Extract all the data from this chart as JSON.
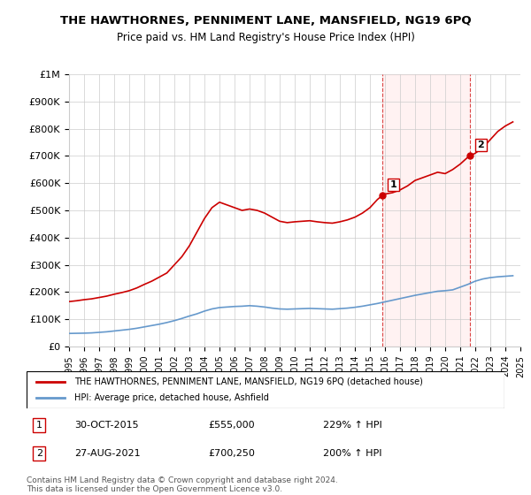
{
  "title": "THE HAWTHORNES, PENNIMENT LANE, MANSFIELD, NG19 6PQ",
  "subtitle": "Price paid vs. HM Land Registry's House Price Index (HPI)",
  "legend_label_red": "THE HAWTHORNES, PENNIMENT LANE, MANSFIELD, NG19 6PQ (detached house)",
  "legend_label_blue": "HPI: Average price, detached house, Ashfield",
  "footer1": "Contains HM Land Registry data © Crown copyright and database right 2024.",
  "footer2": "This data is licensed under the Open Government Licence v3.0.",
  "point1_label": "1",
  "point1_date": "30-OCT-2015",
  "point1_price": "£555,000",
  "point1_hpi": "229% ↑ HPI",
  "point1_year": 2015.83,
  "point1_value": 555000,
  "point2_label": "2",
  "point2_date": "27-AUG-2021",
  "point2_price": "£700,250",
  "point2_hpi": "200% ↑ HPI",
  "point2_year": 2021.65,
  "point2_value": 700250,
  "vline1_year": 2015.83,
  "vline2_year": 2021.65,
  "red_color": "#cc0000",
  "blue_color": "#6699cc",
  "vline_color": "#cc0000",
  "background_color": "#ffffff",
  "grid_color": "#cccccc",
  "xlim": [
    1995,
    2025
  ],
  "ylim": [
    0,
    1000000
  ],
  "yticks": [
    0,
    100000,
    200000,
    300000,
    400000,
    500000,
    600000,
    700000,
    800000,
    900000,
    1000000
  ],
  "ytick_labels": [
    "£0",
    "£100K",
    "£200K",
    "£300K",
    "£400K",
    "£500K",
    "£600K",
    "£700K",
    "£800K",
    "£900K",
    "£1M"
  ],
  "xtick_years": [
    1995,
    1996,
    1997,
    1998,
    1999,
    2000,
    2001,
    2002,
    2003,
    2004,
    2005,
    2006,
    2007,
    2008,
    2009,
    2010,
    2011,
    2012,
    2013,
    2014,
    2015,
    2016,
    2017,
    2018,
    2019,
    2020,
    2021,
    2022,
    2023,
    2024,
    2025
  ],
  "red_x": [
    1995.0,
    1995.5,
    1996.0,
    1996.5,
    1997.0,
    1997.5,
    1998.0,
    1998.5,
    1999.0,
    1999.5,
    2000.0,
    2000.5,
    2001.0,
    2001.5,
    2002.0,
    2002.5,
    2003.0,
    2003.5,
    2004.0,
    2004.5,
    2005.0,
    2005.5,
    2006.0,
    2006.5,
    2007.0,
    2007.5,
    2008.0,
    2008.5,
    2009.0,
    2009.5,
    2010.0,
    2010.5,
    2011.0,
    2011.5,
    2012.0,
    2012.5,
    2013.0,
    2013.5,
    2014.0,
    2014.5,
    2015.0,
    2015.5,
    2015.83,
    2016.0,
    2016.5,
    2017.0,
    2017.5,
    2018.0,
    2018.5,
    2019.0,
    2019.5,
    2020.0,
    2020.5,
    2021.0,
    2021.5,
    2021.65,
    2022.0,
    2022.5,
    2023.0,
    2023.5,
    2024.0,
    2024.5
  ],
  "red_y": [
    165000,
    168000,
    172000,
    175000,
    180000,
    185000,
    192000,
    198000,
    205000,
    215000,
    228000,
    240000,
    255000,
    270000,
    300000,
    330000,
    370000,
    420000,
    470000,
    510000,
    530000,
    520000,
    510000,
    500000,
    505000,
    500000,
    490000,
    475000,
    460000,
    455000,
    458000,
    460000,
    462000,
    458000,
    455000,
    453000,
    458000,
    465000,
    475000,
    490000,
    510000,
    540000,
    555000,
    560000,
    565000,
    575000,
    590000,
    610000,
    620000,
    630000,
    640000,
    635000,
    650000,
    670000,
    695000,
    700250,
    710000,
    730000,
    760000,
    790000,
    810000,
    825000
  ],
  "blue_x": [
    1995.0,
    1995.5,
    1996.0,
    1996.5,
    1997.0,
    1997.5,
    1998.0,
    1998.5,
    1999.0,
    1999.5,
    2000.0,
    2000.5,
    2001.0,
    2001.5,
    2002.0,
    2002.5,
    2003.0,
    2003.5,
    2004.0,
    2004.5,
    2005.0,
    2005.5,
    2006.0,
    2006.5,
    2007.0,
    2007.5,
    2008.0,
    2008.5,
    2009.0,
    2009.5,
    2010.0,
    2010.5,
    2011.0,
    2011.5,
    2012.0,
    2012.5,
    2013.0,
    2013.5,
    2014.0,
    2014.5,
    2015.0,
    2015.5,
    2016.0,
    2016.5,
    2017.0,
    2017.5,
    2018.0,
    2018.5,
    2019.0,
    2019.5,
    2020.0,
    2020.5,
    2021.0,
    2021.5,
    2022.0,
    2022.5,
    2023.0,
    2023.5,
    2024.0,
    2024.5
  ],
  "blue_y": [
    48000,
    48500,
    49000,
    50000,
    52000,
    54000,
    57000,
    60000,
    63000,
    67000,
    72000,
    77000,
    82000,
    88000,
    95000,
    103000,
    112000,
    120000,
    130000,
    138000,
    143000,
    145000,
    147000,
    148000,
    150000,
    148000,
    145000,
    141000,
    138000,
    137000,
    138000,
    139000,
    140000,
    139000,
    138000,
    137000,
    139000,
    141000,
    144000,
    148000,
    153000,
    158000,
    164000,
    170000,
    176000,
    182000,
    188000,
    193000,
    198000,
    203000,
    205000,
    208000,
    218000,
    228000,
    240000,
    248000,
    253000,
    256000,
    258000,
    260000
  ]
}
